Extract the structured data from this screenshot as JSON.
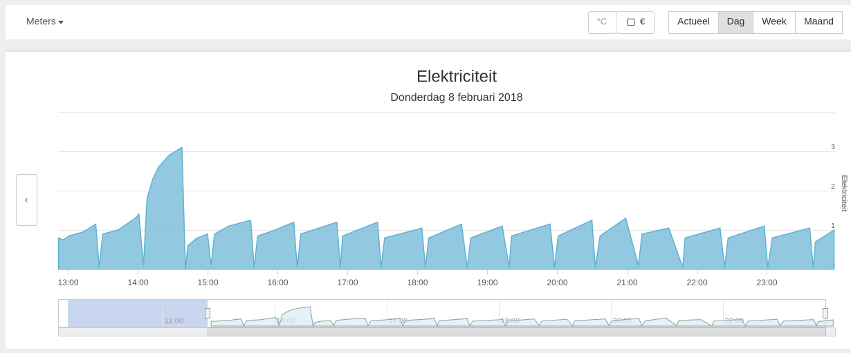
{
  "toolbar": {
    "menu": "Meters",
    "unit_buttons": [
      "°C",
      "€"
    ],
    "period_buttons": [
      "Actueel",
      "Dag",
      "Week",
      "Maand"
    ],
    "active_period": "Dag"
  },
  "nav_prev": "‹",
  "chart_data": {
    "type": "area",
    "title": "Elektriciteit",
    "subtitle": "Donderdag 8 februari 2018",
    "y_axis_label": "Elektriciteit",
    "x": [
      "12:52",
      "12:56",
      "13:01",
      "13:13",
      "13:24",
      "13:27",
      "13:30",
      "13:43",
      "13:58",
      "14:01",
      "14:05",
      "14:08",
      "14:13",
      "14:18",
      "14:27",
      "14:38",
      "14:41",
      "14:43",
      "14:51",
      "15:00",
      "15:03",
      "15:06",
      "15:18",
      "15:37",
      "15:40",
      "15:43",
      "15:58",
      "16:14",
      "16:17",
      "16:20",
      "16:51",
      "16:54",
      "16:56",
      "17:26",
      "17:29",
      "17:32",
      "17:58",
      "18:04",
      "18:07",
      "18:10",
      "18:38",
      "18:43",
      "18:46",
      "19:13",
      "19:19",
      "19:21",
      "19:54",
      "19:58",
      "20:01",
      "20:30",
      "20:33",
      "20:37",
      "20:59",
      "21:10",
      "21:13",
      "21:36",
      "21:48",
      "21:50",
      "22:20",
      "22:24",
      "22:27",
      "22:58",
      "23:01",
      "23:05",
      "23:37",
      "23:40",
      "23:42",
      "23:58"
    ],
    "series": [
      {
        "name": "Elektriciteit",
        "color": "#7fbfdc",
        "values": [
          0.8,
          0.75,
          0.85,
          0.95,
          1.15,
          0.05,
          0.9,
          1.0,
          1.3,
          1.4,
          0.1,
          1.8,
          2.3,
          2.6,
          2.9,
          3.1,
          0.0,
          0.6,
          0.8,
          0.9,
          0.1,
          0.9,
          1.1,
          1.25,
          0.05,
          0.85,
          1.0,
          1.2,
          0.05,
          0.9,
          1.2,
          0.05,
          0.85,
          1.2,
          0.05,
          0.8,
          1.0,
          1.05,
          0.05,
          0.8,
          1.15,
          0.05,
          0.8,
          1.1,
          0.05,
          0.85,
          1.15,
          0.05,
          0.85,
          1.25,
          0.05,
          0.85,
          1.3,
          0.1,
          0.9,
          1.05,
          0.05,
          0.8,
          1.05,
          0.05,
          0.8,
          1.1,
          0.05,
          0.8,
          1.05,
          0.05,
          0.7,
          1.0
        ]
      }
    ],
    "ylim": [
      0,
      4
    ],
    "yticks": [
      0,
      1,
      2,
      3
    ],
    "xticks": [
      "13:00",
      "14:00",
      "15:00",
      "16:00",
      "17:00",
      "18:00",
      "19:00",
      "20:00",
      "21:00",
      "22:00",
      "23:00"
    ],
    "navigator_ticks": [
      "12:00",
      "14:00",
      "16:00",
      "18:00",
      "20:00",
      "22:00"
    ],
    "grid": true
  }
}
